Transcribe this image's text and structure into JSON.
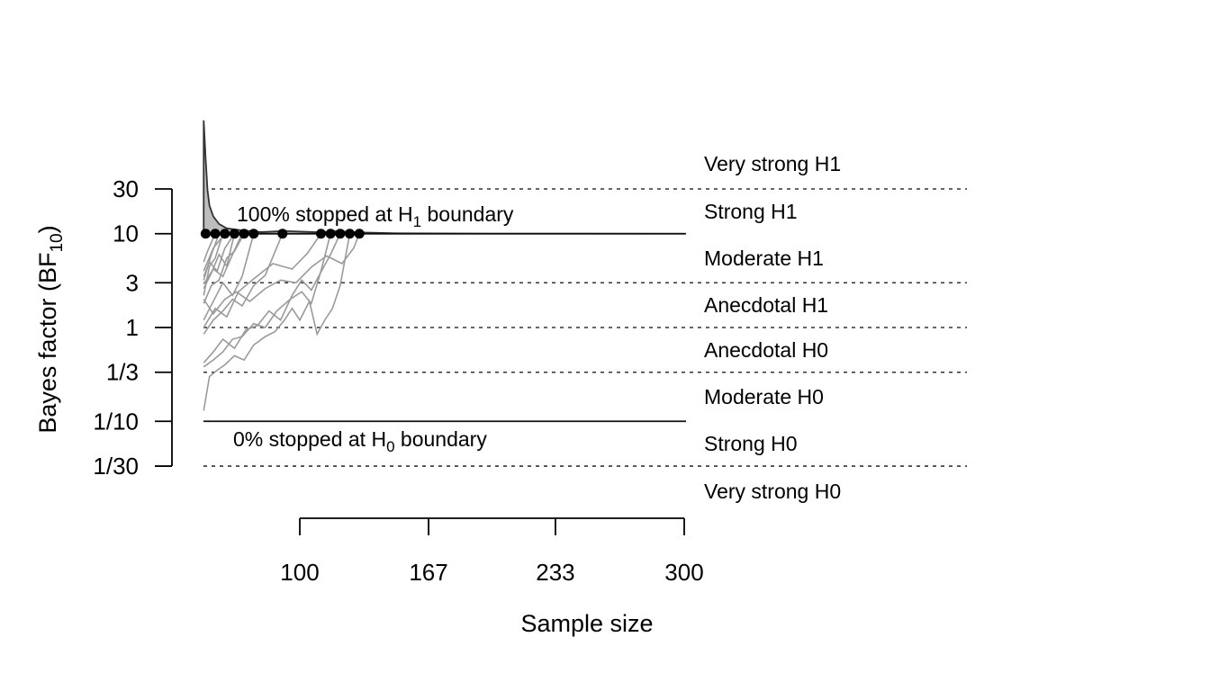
{
  "chart_data": {
    "type": "line",
    "xlabel": "Sample size",
    "ylabel": {
      "main": "Bayes factor (BF",
      "sub": "10",
      "end": ")"
    },
    "y_scale": "log",
    "x_ticks": [
      100,
      167,
      233,
      300
    ],
    "y_ticks": [
      {
        "value": 30,
        "label": "30"
      },
      {
        "value": 10,
        "label": "10"
      },
      {
        "value": 3,
        "label": "3"
      },
      {
        "value": 1,
        "label": "1"
      },
      {
        "value": 0.3333,
        "label": "1/3"
      },
      {
        "value": 0.1,
        "label": "1/10"
      },
      {
        "value": 0.0333,
        "label": "1/30"
      }
    ],
    "evidence_thresholds": [
      30,
      3,
      1,
      0.3333,
      0.0333
    ],
    "boundaries": {
      "upper": 10,
      "lower": 0.1
    },
    "evidence_labels": [
      "Very strong H1",
      "Strong H1",
      "Moderate H1",
      "Anecdotal H1",
      "Anecdotal H0",
      "Moderate H0",
      "Strong H0",
      "Very strong H0"
    ],
    "annotations": {
      "upper": {
        "prefix": "100% stopped at H",
        "sub": "1",
        "suffix": " boundary"
      },
      "lower": {
        "prefix": "0% stopped at H",
        "sub": "0",
        "suffix": " boundary"
      }
    },
    "stopping_points_n": [
      51,
      56,
      61,
      66,
      71,
      76,
      91,
      111,
      116,
      121,
      126,
      131
    ],
    "stop_density": [
      [
        50,
        105
      ],
      [
        51,
        70
      ],
      [
        52,
        40
      ],
      [
        53,
        26
      ],
      [
        55,
        16
      ],
      [
        58,
        9
      ],
      [
        62,
        5
      ],
      [
        70,
        3
      ],
      [
        80,
        1.5
      ],
      [
        92,
        2.5
      ],
      [
        110,
        1.3
      ],
      [
        120,
        2.5
      ],
      [
        130,
        1.2
      ],
      [
        150,
        0.4
      ],
      [
        200,
        0.05
      ],
      [
        300,
        0.0
      ]
    ],
    "series": [
      {
        "values": [
          [
            50,
            2.2
          ],
          [
            53,
            4.5
          ],
          [
            56,
            5.5
          ],
          [
            60,
            10
          ]
        ]
      },
      {
        "values": [
          [
            50,
            3.2
          ],
          [
            54,
            6.0
          ],
          [
            58,
            10
          ]
        ]
      },
      {
        "values": [
          [
            50,
            4.0
          ],
          [
            55,
            7.0
          ],
          [
            61,
            10
          ]
        ]
      },
      {
        "values": [
          [
            50,
            2.6
          ],
          [
            54,
            3.8
          ],
          [
            58,
            6.0
          ],
          [
            62,
            4.5
          ],
          [
            66,
            10
          ]
        ]
      },
      {
        "values": [
          [
            50,
            5.0
          ],
          [
            52,
            6.5
          ],
          [
            56,
            10
          ]
        ]
      },
      {
        "values": [
          [
            50,
            1.8
          ],
          [
            54,
            2.8
          ],
          [
            58,
            3.2
          ],
          [
            62,
            5.5
          ],
          [
            66,
            6.5
          ],
          [
            71,
            10
          ]
        ]
      },
      {
        "values": [
          [
            50,
            3.5
          ],
          [
            53,
            5.0
          ],
          [
            57,
            4.0
          ],
          [
            61,
            7.0
          ],
          [
            66,
            10
          ]
        ]
      },
      {
        "values": [
          [
            50,
            2.9
          ],
          [
            55,
            4.2
          ],
          [
            60,
            3.5
          ],
          [
            65,
            6.0
          ],
          [
            70,
            10
          ]
        ]
      },
      {
        "values": [
          [
            50,
            1.2
          ],
          [
            55,
            1.9
          ],
          [
            60,
            3.0
          ],
          [
            65,
            2.2
          ],
          [
            70,
            3.5
          ],
          [
            76,
            10
          ]
        ]
      },
      {
        "values": [
          [
            50,
            0.85
          ],
          [
            55,
            1.2
          ],
          [
            60,
            1.5
          ],
          [
            65,
            2.0
          ],
          [
            70,
            1.7
          ],
          [
            76,
            2.8
          ],
          [
            82,
            3.6
          ],
          [
            91,
            10
          ]
        ]
      },
      {
        "values": [
          [
            50,
            1.0
          ],
          [
            56,
            1.6
          ],
          [
            62,
            1.3
          ],
          [
            68,
            2.4
          ],
          [
            76,
            3.3
          ],
          [
            86,
            4.8
          ],
          [
            96,
            4.2
          ],
          [
            104,
            6.2
          ],
          [
            111,
            10
          ]
        ]
      },
      {
        "values": [
          [
            50,
            0.38
          ],
          [
            55,
            0.45
          ],
          [
            60,
            0.55
          ],
          [
            65,
            0.75
          ],
          [
            70,
            0.8
          ],
          [
            76,
            1.1
          ],
          [
            82,
            1.0
          ],
          [
            88,
            1.5
          ],
          [
            95,
            2.0
          ],
          [
            101,
            2.4
          ],
          [
            106,
            1.8
          ],
          [
            111,
            4.0
          ],
          [
            116,
            10
          ]
        ]
      },
      {
        "values": [
          [
            50,
            0.42
          ],
          [
            55,
            0.55
          ],
          [
            60,
            0.75
          ],
          [
            66,
            0.6
          ],
          [
            72,
            0.95
          ],
          [
            78,
            1.05
          ],
          [
            84,
            1.5
          ],
          [
            90,
            1.2
          ],
          [
            96,
            2.2
          ],
          [
            101,
            3.2
          ],
          [
            106,
            2.5
          ],
          [
            111,
            3.9
          ],
          [
            116,
            6.0
          ],
          [
            121,
            10
          ]
        ]
      },
      {
        "values": [
          [
            50,
            0.13
          ],
          [
            53,
            0.3
          ],
          [
            57,
            0.35
          ],
          [
            61,
            0.4
          ],
          [
            66,
            0.5
          ],
          [
            71,
            0.45
          ],
          [
            76,
            0.65
          ],
          [
            82,
            0.8
          ],
          [
            87,
            0.9
          ],
          [
            92,
            1.2
          ],
          [
            96,
            1.6
          ],
          [
            100,
            1.2
          ],
          [
            105,
            1.9
          ],
          [
            109,
            0.85
          ],
          [
            113,
            1.2
          ],
          [
            117,
            1.6
          ],
          [
            121,
            2.8
          ],
          [
            126,
            10
          ]
        ]
      },
      {
        "values": [
          [
            50,
            2.0
          ],
          [
            55,
            1.4
          ],
          [
            61,
            2.0
          ],
          [
            67,
            2.4
          ],
          [
            74,
            1.9
          ],
          [
            82,
            2.6
          ],
          [
            90,
            3.2
          ],
          [
            98,
            3.0
          ],
          [
            106,
            4.4
          ],
          [
            114,
            5.8
          ],
          [
            122,
            4.8
          ],
          [
            128,
            7.0
          ],
          [
            131,
            10
          ]
        ]
      }
    ]
  }
}
